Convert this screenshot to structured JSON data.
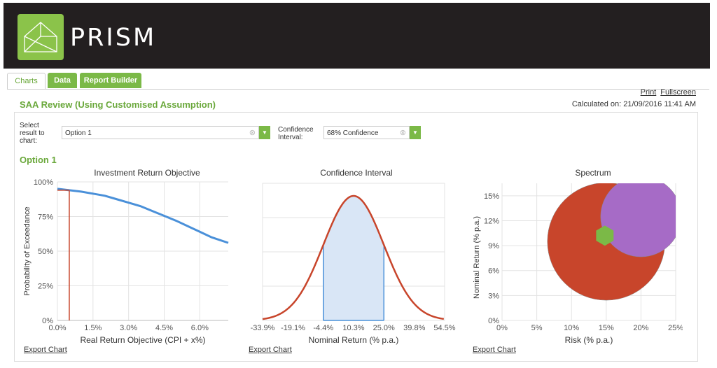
{
  "header": {
    "brand": "PRISM"
  },
  "tabs": [
    {
      "label": "Charts",
      "active": true
    },
    {
      "label": "Data",
      "active": false
    },
    {
      "label": "Report Builder",
      "active": false
    }
  ],
  "links": {
    "print": "Print",
    "fullscreen": "Fullscreen"
  },
  "page": {
    "title": "SAA Review (Using Customised Assumption)",
    "calculated": "Calculated on: 21/09/2016 11:41 AM"
  },
  "controls": {
    "result_label": "Select result to chart:",
    "result_value": "Option 1",
    "confidence_label": "Confidence Interval:",
    "confidence_value": "68% Confidence"
  },
  "option_title": "Option 1",
  "export_label": "Export Chart",
  "colors": {
    "accent": "#6aa83b",
    "line_blue": "#4a90d9",
    "line_red": "#c8452b",
    "purple": "#a66bc6",
    "green_hex": "#7bb947"
  },
  "chart_data": [
    {
      "type": "line",
      "title": "Investment Return Objective",
      "xlabel": "Real Return Objective (CPI + x%)",
      "ylabel": "Probability of Exceedance",
      "xlim": [
        0,
        7.2
      ],
      "ylim": [
        0,
        100
      ],
      "x_ticks": [
        "0.0%",
        "1.5%",
        "3.0%",
        "4.5%",
        "6.0%"
      ],
      "y_ticks": [
        "0%",
        "25%",
        "50%",
        "75%",
        "100%"
      ],
      "series": [
        {
          "x": [
            0,
            0.5,
            1,
            1.5,
            2,
            2.5,
            3,
            3.5,
            4,
            4.5,
            5,
            5.5,
            6,
            6.5,
            7.2
          ],
          "values": [
            95,
            94,
            93,
            91.5,
            90,
            87.5,
            85,
            82.5,
            79,
            75.5,
            72,
            68,
            64,
            60,
            56
          ]
        }
      ],
      "marker_x": 0.5,
      "marker_y": 94
    },
    {
      "type": "area",
      "title": "Confidence Interval",
      "xlabel": "Nominal Return (% p.a.)",
      "ylabel": "",
      "x_ticks": [
        "-33.9%",
        "-19.1%",
        "-4.4%",
        "10.3%",
        "25.0%",
        "39.8%",
        "54.5%"
      ],
      "xlim": [
        -33.9,
        54.5
      ],
      "mean": 10.3,
      "sd": 14.7,
      "band": [
        -4.4,
        25.0
      ],
      "confidence": "68% Confidence"
    },
    {
      "type": "scatter",
      "title": "Spectrum",
      "xlabel": "Risk (% p.a.)",
      "ylabel": "Nominal Return (% p.a.)",
      "xlim": [
        0,
        25
      ],
      "ylim": [
        0,
        16.5
      ],
      "x_ticks": [
        "0%",
        "5%",
        "10%",
        "15%",
        "20%",
        "25%"
      ],
      "y_ticks": [
        "0%",
        "3%",
        "6%",
        "9%",
        "12%",
        "15%"
      ],
      "points": [
        {
          "x": 15,
          "y": 9.5,
          "size": 70,
          "color": "#c8452b",
          "shape": "circle"
        },
        {
          "x": 20,
          "y": 12.5,
          "size": 48,
          "color": "#a66bc6",
          "shape": "circle"
        },
        {
          "x": 14.8,
          "y": 10.2,
          "size": 12,
          "color": "#7bb947",
          "shape": "hexagon"
        }
      ]
    }
  ]
}
